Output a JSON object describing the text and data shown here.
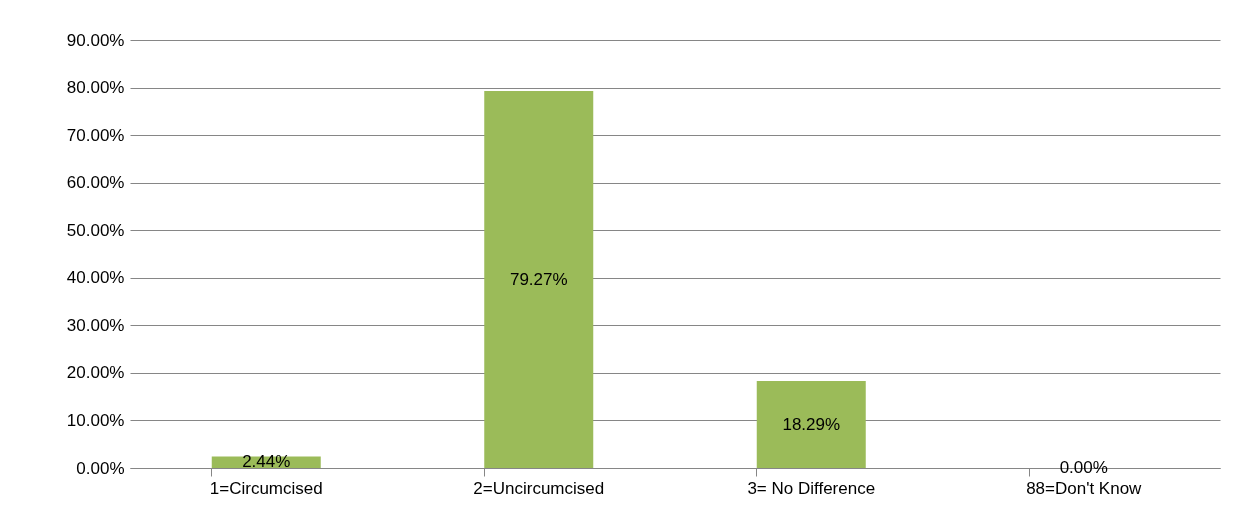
{
  "chart_data": {
    "type": "bar",
    "categories": [
      "1=Circumcised",
      "2=Uncircumcised",
      "3= No Difference",
      "88=Don't Know"
    ],
    "values": [
      2.44,
      79.27,
      18.29,
      0.0
    ],
    "color": "#9bbb59",
    "value_labels": [
      "2.44%",
      "79.27%",
      "18.29%",
      "0.00%"
    ],
    "ylim": [
      0,
      90
    ],
    "yticks": [
      {
        "value": 0,
        "label": "0.00%"
      },
      {
        "value": 10,
        "label": "10.00%"
      },
      {
        "value": 20,
        "label": "20.00%"
      },
      {
        "value": 30,
        "label": "30.00%"
      },
      {
        "value": 40,
        "label": "40.00%"
      },
      {
        "value": 50,
        "label": "50.00%"
      },
      {
        "value": 60,
        "label": "60.00%"
      },
      {
        "value": 70,
        "label": "70.00%"
      },
      {
        "value": 80,
        "label": "80.00%"
      },
      {
        "value": 90,
        "label": "90.00%"
      }
    ],
    "grid": "y"
  }
}
